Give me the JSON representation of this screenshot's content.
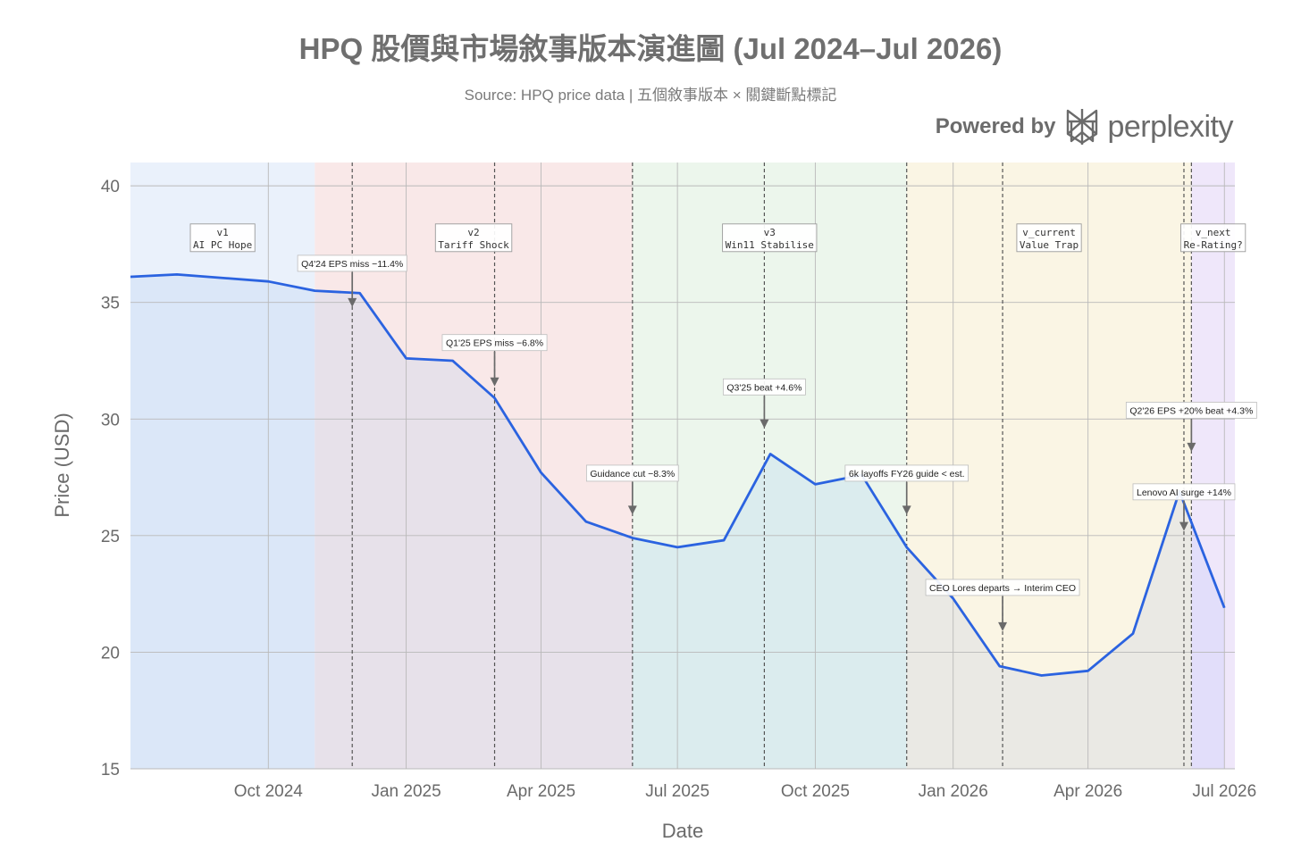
{
  "title": "HPQ 股價與市場敘事版本演進圖 (Jul 2024–Jul 2026)",
  "subtitle": "Source: HPQ price data | 五個敘事版本 × 關鍵斷點標記",
  "brand": {
    "prefix": "Powered by",
    "name": "perplexity",
    "logo_icon": "perplexity-logo-icon",
    "color": "#6b6b6b"
  },
  "chart_data": {
    "type": "area",
    "xlabel": "Date",
    "ylabel": "Price (USD)",
    "xlim": [
      "2024-07-01",
      "2026-07-08"
    ],
    "ylim": [
      15,
      41
    ],
    "y_ticks": [
      15,
      20,
      25,
      30,
      35,
      40
    ],
    "x_ticks": [
      {
        "date": "2024-10-01",
        "label": "Oct 2024"
      },
      {
        "date": "2025-01-01",
        "label": "Jan 2025"
      },
      {
        "date": "2025-04-01",
        "label": "Apr 2025"
      },
      {
        "date": "2025-07-01",
        "label": "Jul 2025"
      },
      {
        "date": "2025-10-01",
        "label": "Oct 2025"
      },
      {
        "date": "2026-01-01",
        "label": "Jan 2026"
      },
      {
        "date": "2026-04-01",
        "label": "Apr 2026"
      },
      {
        "date": "2026-07-01",
        "label": "Jul 2026"
      }
    ],
    "grid": true,
    "line_color": "#2b63e0",
    "series": [
      {
        "points": [
          {
            "x": "2024-07-01",
            "y": 36.1
          },
          {
            "x": "2024-08-01",
            "y": 36.2
          },
          {
            "x": "2024-10-01",
            "y": 35.9
          },
          {
            "x": "2024-11-01",
            "y": 35.5
          },
          {
            "x": "2024-12-01",
            "y": 35.4
          },
          {
            "x": "2025-01-01",
            "y": 32.6
          },
          {
            "x": "2025-02-01",
            "y": 32.5
          },
          {
            "x": "2025-03-01",
            "y": 30.9
          },
          {
            "x": "2025-04-01",
            "y": 27.7
          },
          {
            "x": "2025-05-01",
            "y": 25.6
          },
          {
            "x": "2025-06-01",
            "y": 24.9
          },
          {
            "x": "2025-07-01",
            "y": 24.5
          },
          {
            "x": "2025-08-01",
            "y": 24.8
          },
          {
            "x": "2025-09-01",
            "y": 28.5
          },
          {
            "x": "2025-10-01",
            "y": 27.2
          },
          {
            "x": "2025-11-01",
            "y": 27.6
          },
          {
            "x": "2025-12-01",
            "y": 24.5
          },
          {
            "x": "2026-01-01",
            "y": 22.3
          },
          {
            "x": "2026-02-01",
            "y": 19.4
          },
          {
            "x": "2026-03-01",
            "y": 19.0
          },
          {
            "x": "2026-04-01",
            "y": 19.2
          },
          {
            "x": "2026-05-01",
            "y": 20.8
          },
          {
            "x": "2026-06-01",
            "y": 26.9
          },
          {
            "x": "2026-07-01",
            "y": 21.9
          }
        ]
      }
    ],
    "phases": [
      {
        "id": "v1",
        "line1": "v1",
        "line2": "AI PC Hope",
        "start": "2024-07-01",
        "end": "2024-11-01",
        "band_color": "#eaf1fb",
        "fill_color": "#dbe7f8"
      },
      {
        "id": "v2",
        "line1": "v2",
        "line2": "Tariff Shock",
        "start": "2024-11-01",
        "end": "2025-06-01",
        "band_color": "#f9e8e8",
        "fill_color": "#e7e1ea"
      },
      {
        "id": "v3",
        "line1": "v3",
        "line2": "Win11 Stabilise",
        "start": "2025-06-01",
        "end": "2025-12-01",
        "band_color": "#ecf6ec",
        "fill_color": "#dbecee"
      },
      {
        "id": "v_current",
        "line1": "v_current",
        "line2": "Value Trap",
        "start": "2025-12-01",
        "end": "2026-06-09",
        "band_color": "#faf5e4",
        "fill_color": "#eae9e4"
      },
      {
        "id": "v_next",
        "line1": "v_next",
        "line2": "Re-Rating?",
        "start": "2026-06-09",
        "end": "2026-07-08",
        "band_color": "#efe7fa",
        "fill_color": "#e2defa"
      }
    ],
    "events": [
      {
        "date": "2024-11-26",
        "label": "Q4'24 EPS miss −11.4%",
        "label_y": 36.6,
        "arrow_to": 34.8
      },
      {
        "date": "2025-03-01",
        "label": "Q1'25 EPS miss −6.8%",
        "label_y": 33.2,
        "arrow_to": 31.4
      },
      {
        "date": "2025-06-01",
        "label": "Guidance cut −8.3%",
        "label_y": 27.6,
        "arrow_to": 25.9
      },
      {
        "date": "2025-08-28",
        "label": "Q3'25 beat +4.6%",
        "label_y": 31.3,
        "arrow_to": 29.6
      },
      {
        "date": "2025-12-01",
        "label": "6k layoffs FY26 guide < est.",
        "label_y": 27.6,
        "arrow_to": 25.9
      },
      {
        "date": "2026-02-03",
        "label": "CEO Lores departs → Interim CEO",
        "label_y": 22.7,
        "arrow_to": 20.9
      },
      {
        "date": "2026-06-04",
        "label": "Lenovo AI surge +14%",
        "label_y": 26.8,
        "arrow_to": 25.2
      },
      {
        "date": "2026-06-09",
        "label": "Q2'26 EPS +20% beat +4.3%",
        "label_y": 30.3,
        "arrow_to": 28.6
      }
    ]
  }
}
